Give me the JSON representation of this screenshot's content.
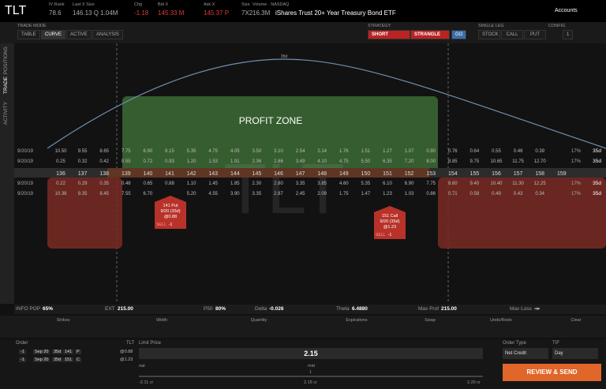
{
  "header": {
    "symbol": "TLT",
    "fields": [
      {
        "label": "IV Rank",
        "value": "78.6"
      },
      {
        "label": "Last X Size",
        "value": "146.13 Q 1.04M"
      },
      {
        "label": "Chg",
        "value": "-1.18"
      },
      {
        "label": "Bid X",
        "value": "145.33 M"
      },
      {
        "label": "Ask X",
        "value": "145.37 P"
      },
      {
        "label": "Size",
        "value": "7X2"
      },
      {
        "label": "Volume · NASDAQ",
        "value": "16.3M"
      }
    ],
    "description": "iShares Trust 20+ Year Treasury Bond ETF",
    "accounts": "Accounts"
  },
  "sidebar": [
    "POSITIONS",
    "TRADE",
    "ACTIVITY"
  ],
  "toolbar": {
    "trade_mode_label": "TRADE MODE",
    "trade_modes": [
      "TABLE",
      "CURVE",
      "ACTIVE",
      "ANALYSIS"
    ],
    "strategy_label": "STRATEGY",
    "strategy": [
      "SHORT",
      "STRANGLE",
      "GO"
    ],
    "single_leg_label": "SINGLE LEG",
    "single_legs": [
      "STOCK",
      "CALL",
      "PUT"
    ],
    "config_label": "CONFIG",
    "config_value": "1"
  },
  "curve": {
    "profit_zone": "PROFIT ZONE",
    "watermark": "TLT",
    "peak_label": "35d"
  },
  "table": {
    "strikes": [
      "136",
      "137",
      "138",
      "139",
      "140",
      "141",
      "142",
      "143",
      "144",
      "145",
      "146",
      "147",
      "148",
      "149",
      "150",
      "151",
      "152",
      "153",
      "154",
      "155",
      "156",
      "157",
      "158",
      "159"
    ],
    "rows": [
      {
        "date": "9/20/19",
        "iv": "17%",
        "dte": "35d",
        "prices": [
          "10.50",
          "9.55",
          "8.65",
          "7.75",
          "6.90",
          "6.15",
          "5.35",
          "4.75",
          "4.05",
          "3.50",
          "3.10",
          "2.54",
          "2.14",
          "1.76",
          "1.51",
          "1.27",
          "1.07",
          "0.90",
          "0.76",
          "0.64",
          "0.55",
          "0.46",
          "0.39",
          null
        ]
      },
      {
        "date": "9/20/19",
        "iv": "17%",
        "dte": "35d",
        "prices": [
          "0.25",
          "0.32",
          "0.42",
          "0.55",
          "0.72",
          "0.93",
          "1.20",
          "1.53",
          "1.91",
          "2.36",
          "2.86",
          "3.49",
          "4.10",
          "4.75",
          "5.50",
          "6.35",
          "7.20",
          "8.00",
          "8.85",
          "9.75",
          "10.65",
          "11.75",
          "12.70",
          null
        ]
      },
      {
        "date": "9/20/19",
        "iv": "17%",
        "dte": "35d",
        "prices": [
          "0.22",
          "0.29",
          "0.35",
          "0.48",
          "0.65",
          "0.88",
          "1.10",
          "1.45",
          "1.85",
          "2.30",
          "2.80",
          "3.35",
          "3.85",
          "4.60",
          "5.35",
          "6.10",
          "6.90",
          "7.75",
          "8.60",
          "9.40",
          "10.40",
          "11.30",
          "12.25",
          null
        ]
      },
      {
        "date": "9/20/19",
        "iv": "17%",
        "dte": "35d",
        "prices": [
          "10.38",
          "9.35",
          "8.45",
          "7.55",
          "6.70",
          null,
          "5.20",
          "4.55",
          "3.90",
          "3.35",
          "2.87",
          "2.45",
          "2.09",
          "1.75",
          "1.47",
          "1.23",
          "1.03",
          "0.86",
          "0.71",
          "0.58",
          "0.49",
          "0.43",
          "0.34",
          null
        ]
      }
    ]
  },
  "legs": [
    {
      "title": "141 Put",
      "expiry": "9/20 (35d)",
      "price": "@0.88",
      "side": "SELL",
      "qty": "-1"
    },
    {
      "title": "151 Call",
      "expiry": "9/20 (35d)",
      "price": "@1.23",
      "side": "SELL",
      "qty": "-1"
    }
  ],
  "stats": [
    {
      "label": "INFO POP",
      "value": "65%"
    },
    {
      "label": "EXT",
      "value": "215.00"
    },
    {
      "label": "P50",
      "value": "80%"
    },
    {
      "label": "Delta",
      "value": "-0.026"
    },
    {
      "label": "Theta",
      "value": "6.4880"
    },
    {
      "label": "Max Prof",
      "value": "215.00"
    },
    {
      "label": "Max Loss",
      "value": "-∞"
    }
  ],
  "controls": [
    "Strikes",
    "Width",
    "Quantity",
    "Expirations",
    "Swap",
    "Undo/Redo",
    "Clear"
  ],
  "order": {
    "label": "Order",
    "symbol": "TLT",
    "limit_label": "Limit Price",
    "rows": [
      {
        "qty": "-1",
        "exp": "Sep 20",
        "dte": "35d",
        "strike": "141",
        "type": "P",
        "price": "@0.88"
      },
      {
        "qty": "-1",
        "exp": "Sep 20",
        "dte": "35d",
        "strike": "151",
        "type": "C",
        "price": "@1.23"
      }
    ],
    "limit_price": "2.15",
    "nat": "nat",
    "mid": "mid",
    "bid": "-2.11 cr",
    "midval": "2.15 cr",
    "ask": "2.20 cr",
    "slider": "1",
    "order_type_label": "Order Type",
    "order_type": "Net Credit",
    "tif_label": "TIF",
    "tif": "Day",
    "submit": "REVIEW & SEND"
  }
}
